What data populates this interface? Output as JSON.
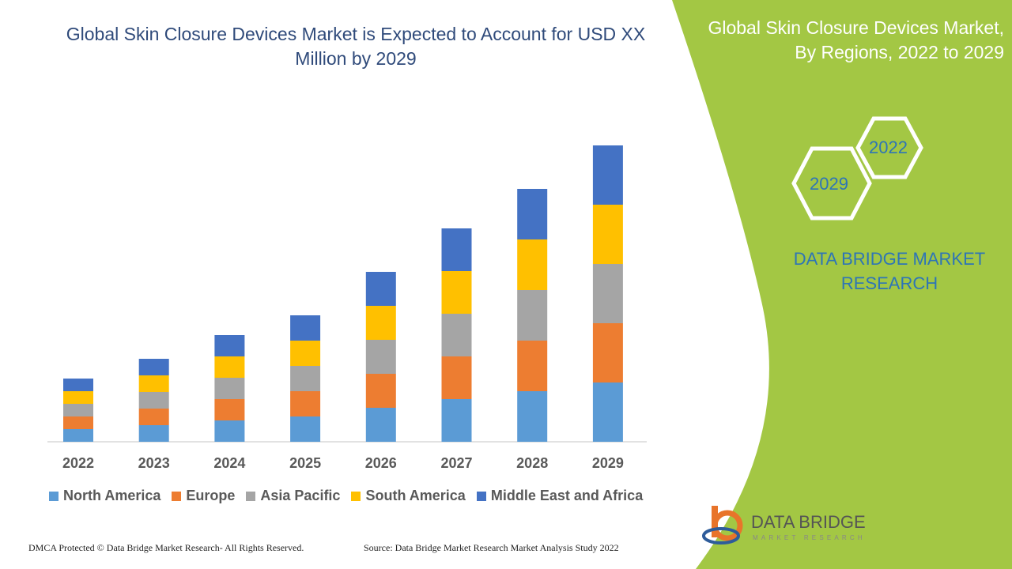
{
  "chart_data": {
    "type": "bar",
    "stacked": true,
    "title": "Global Skin Closure Devices Market is Expected to Account for USD XX Million by 2029",
    "categories": [
      "2022",
      "2023",
      "2024",
      "2025",
      "2026",
      "2027",
      "2028",
      "2029"
    ],
    "series": [
      {
        "name": "North America",
        "color": "#5b9bd5",
        "values": [
          16,
          21,
          27,
          32,
          43,
          54,
          64,
          75
        ]
      },
      {
        "name": "Europe",
        "color": "#ed7d31",
        "values": [
          16,
          21,
          27,
          32,
          43,
          54,
          64,
          75
        ]
      },
      {
        "name": "Asia Pacific",
        "color": "#a5a5a5",
        "values": [
          16,
          21,
          27,
          32,
          43,
          54,
          64,
          75
        ]
      },
      {
        "name": "South America",
        "color": "#ffc000",
        "values": [
          16,
          21,
          27,
          32,
          43,
          54,
          64,
          75
        ]
      },
      {
        "name": "Middle East and Africa",
        "color": "#4472c4",
        "values": [
          16,
          21,
          27,
          32,
          43,
          54,
          64,
          75
        ]
      }
    ],
    "xlabel": "",
    "ylabel": "",
    "grid": false,
    "legend_position": "bottom"
  },
  "side_panel": {
    "title": "Global Skin Closure Devices Market, By Regions, 2022 to 2029",
    "hex_year_a": "2022",
    "hex_year_b": "2029",
    "brand": "DATA BRIDGE MARKET RESEARCH",
    "color": "#a3c744"
  },
  "logo": {
    "name": "DATA BRIDGE",
    "sub": "MARKET RESEARCH"
  },
  "footer": {
    "left": "DMCA Protected © Data Bridge Market Research- All Rights Reserved.",
    "right": "Source: Data Bridge Market Research Market Analysis Study 2022"
  }
}
